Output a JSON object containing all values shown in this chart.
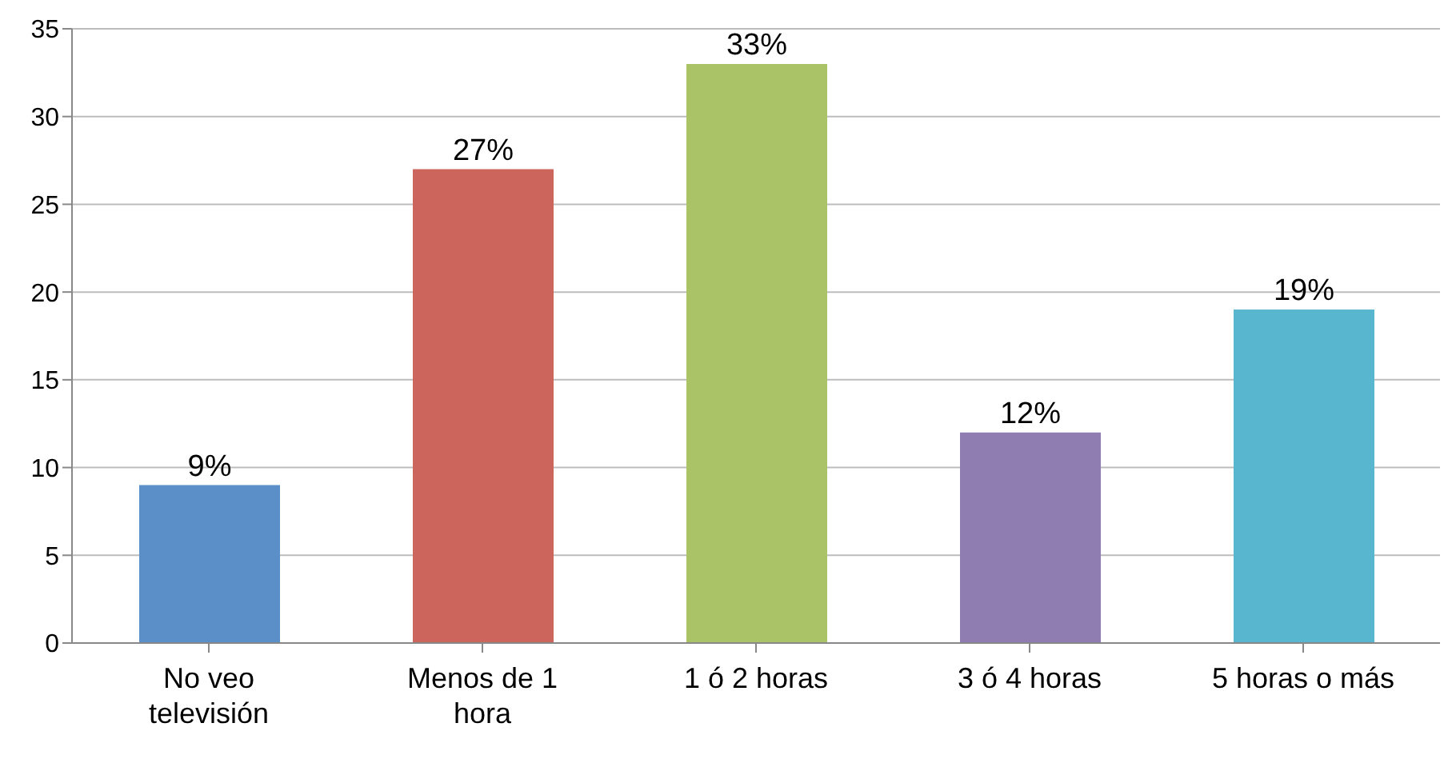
{
  "chart_data": {
    "type": "bar",
    "categories": [
      "No veo televisión",
      "Menos de 1 hora",
      "1 ó 2 horas",
      "3 ó 4 horas",
      "5 horas o más"
    ],
    "values": [
      9,
      27,
      33,
      12,
      19
    ],
    "colors": [
      "#5b8fc7",
      "#cc665c",
      "#aac367",
      "#8f7cb1",
      "#58b7cf"
    ],
    "value_labels": [
      "9%",
      "27%",
      "33%",
      "12%",
      "19%"
    ],
    "ylim": [
      0,
      35
    ],
    "yticks": [
      0,
      5,
      10,
      15,
      20,
      25,
      30,
      35
    ],
    "grid": "y"
  }
}
